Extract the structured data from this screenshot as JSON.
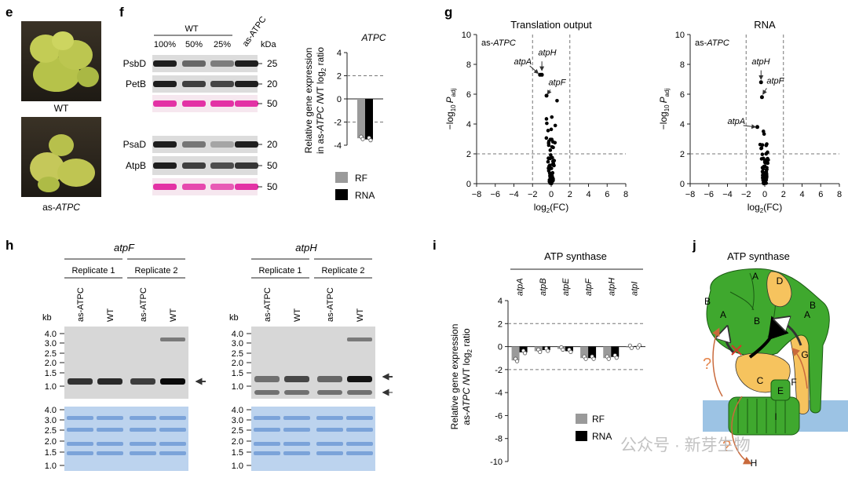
{
  "panel_labels": {
    "e": "e",
    "f": "f",
    "g": "g",
    "h": "h",
    "i": "i",
    "j": "j"
  },
  "panel_e": {
    "label_wt": "WT",
    "label_as": "as-",
    "label_as_gene": "ATPC"
  },
  "panel_f": {
    "wt_header": "WT",
    "columns": [
      "100%",
      "50%",
      "25%",
      "as-ATPC"
    ],
    "kda": "kDa",
    "blots": [
      {
        "name": "PsbD",
        "kda": "25"
      },
      {
        "name": "PetB",
        "kda": "20"
      },
      {
        "name": "",
        "kda": "50"
      },
      {
        "name": "PsaD",
        "kda": "20"
      },
      {
        "name": "AtpB",
        "kda": "50"
      },
      {
        "name": "",
        "kda": "50"
      }
    ],
    "bar_title": "ATPC",
    "ylabel_1": "Relative gene expression",
    "ylabel_2a": "in as-",
    "ylabel_2b": "ATPC",
    "ylabel_2c": " /WT log",
    "ylabel_2d": "2",
    "ylabel_2e": " ratio",
    "legend": [
      "RF",
      "RNA"
    ]
  },
  "panel_g": {
    "left_title": "Translation output",
    "right_title": "RNA",
    "as_label": "as-",
    "as_gene": "ATPC",
    "ylabel_main": "−log",
    "ylabel_sub": "10",
    "ylabel_p": "P",
    "ylabel_adj": "adj",
    "xlabel_main": "log",
    "xlabel_sub": "2",
    "xlabel_end": "(FC)",
    "annot_left": [
      "atpH",
      "atpA",
      "atpF"
    ],
    "annot_right": [
      "atpH",
      "atpF",
      "atpA"
    ]
  },
  "panel_h": {
    "left_gene": "atpF",
    "right_gene": "atpH",
    "replicates": [
      "Replicate 1",
      "Replicate 2"
    ],
    "lanes": [
      "as-ATPC",
      "WT",
      "as-ATPC",
      "WT"
    ],
    "kb": "kb",
    "size_ticks": [
      "4.0",
      "3.0",
      "2.5",
      "2.0",
      "1.5",
      "1.0"
    ],
    "size_ticks_bottom": [
      "4.0",
      "3.0",
      "2.5",
      "2.0",
      "1.5",
      "1.0"
    ]
  },
  "panel_i": {
    "title": "ATP synthase",
    "genes": [
      "atpA",
      "atpB",
      "atpE",
      "atpF",
      "atpH",
      "atpI"
    ],
    "ylabel_1": "Relative gene expression",
    "ylabel_2a": "as-",
    "ylabel_2b": "ATPC",
    "ylabel_2c": " /WT log",
    "ylabel_2d": "2",
    "ylabel_2e": " ratio",
    "legend": [
      "RF",
      "RNA"
    ]
  },
  "panel_j": {
    "title": "ATP synthase",
    "subunits": [
      "A",
      "B",
      "D",
      "B",
      "A",
      "B",
      "G",
      "C",
      "E",
      "F",
      "I",
      "A",
      "H"
    ],
    "question": "?"
  },
  "watermark": "公众号 · 新芽生物",
  "chart_data": [
    {
      "type": "bar",
      "id": "f-atpc",
      "title": "ATPC",
      "ylabel": "Relative gene expression in as-ATPC /WT log2 ratio",
      "ylim": [
        -4,
        4
      ],
      "yticks": [
        4,
        2,
        0,
        -2,
        -4
      ],
      "categories": [
        "ATPC"
      ],
      "series": [
        {
          "name": "RF",
          "values": [
            -3.4
          ],
          "color": "#9a9a9a"
        },
        {
          "name": "RNA",
          "values": [
            -3.5
          ],
          "color": "#000000"
        }
      ],
      "hlines_dashed": [
        2,
        -2
      ]
    },
    {
      "type": "scatter",
      "id": "g-translation",
      "title": "Translation output",
      "xlabel": "log2(FC)",
      "ylabel": "-log10 Padj",
      "xlim": [
        -8,
        8
      ],
      "ylim": [
        0,
        10
      ],
      "xticks": [
        -8,
        -6,
        -4,
        -2,
        0,
        2,
        4,
        6,
        8
      ],
      "yticks": [
        0,
        2,
        4,
        6,
        8,
        10
      ],
      "vlines_dashed": [
        -2,
        2
      ],
      "hlines_dashed": [
        2
      ],
      "highlight": [
        {
          "label": "atpH",
          "x": -1.0,
          "y": 7.3
        },
        {
          "label": "atpA",
          "x": -1.2,
          "y": 7.3
        },
        {
          "label": "atpF",
          "x": -0.5,
          "y": 5.9
        }
      ]
    },
    {
      "type": "scatter",
      "id": "g-rna",
      "title": "RNA",
      "xlabel": "log2(FC)",
      "ylabel": "-log10 Padj",
      "xlim": [
        -8,
        8
      ],
      "ylim": [
        0,
        10
      ],
      "xticks": [
        -8,
        -6,
        -4,
        -2,
        0,
        2,
        4,
        6,
        8
      ],
      "yticks": [
        0,
        2,
        4,
        6,
        8,
        10
      ],
      "vlines_dashed": [
        -2,
        2
      ],
      "hlines_dashed": [
        2
      ],
      "highlight": [
        {
          "label": "atpH",
          "x": -0.4,
          "y": 6.8
        },
        {
          "label": "atpF",
          "x": -0.3,
          "y": 5.8
        },
        {
          "label": "atpA",
          "x": -0.8,
          "y": 3.8
        }
      ]
    },
    {
      "type": "bar",
      "id": "i-atp-synthase",
      "title": "ATP synthase",
      "ylabel": "Relative gene expression as-ATPC /WT log2 ratio",
      "ylim": [
        -10,
        4
      ],
      "yticks": [
        4,
        2,
        0,
        -2,
        -4,
        -6,
        -8,
        -10
      ],
      "categories": [
        "atpA",
        "atpB",
        "atpE",
        "atpF",
        "atpH",
        "atpI"
      ],
      "series": [
        {
          "name": "RF",
          "values": [
            -1.2,
            -0.4,
            -0.2,
            -1.0,
            -1.0,
            -0.05
          ],
          "color": "#9a9a9a"
        },
        {
          "name": "RNA",
          "values": [
            -0.5,
            -0.3,
            -0.4,
            -1.0,
            -0.9,
            0.05
          ],
          "color": "#000000"
        }
      ],
      "hlines_dashed": [
        2,
        -2
      ]
    }
  ]
}
